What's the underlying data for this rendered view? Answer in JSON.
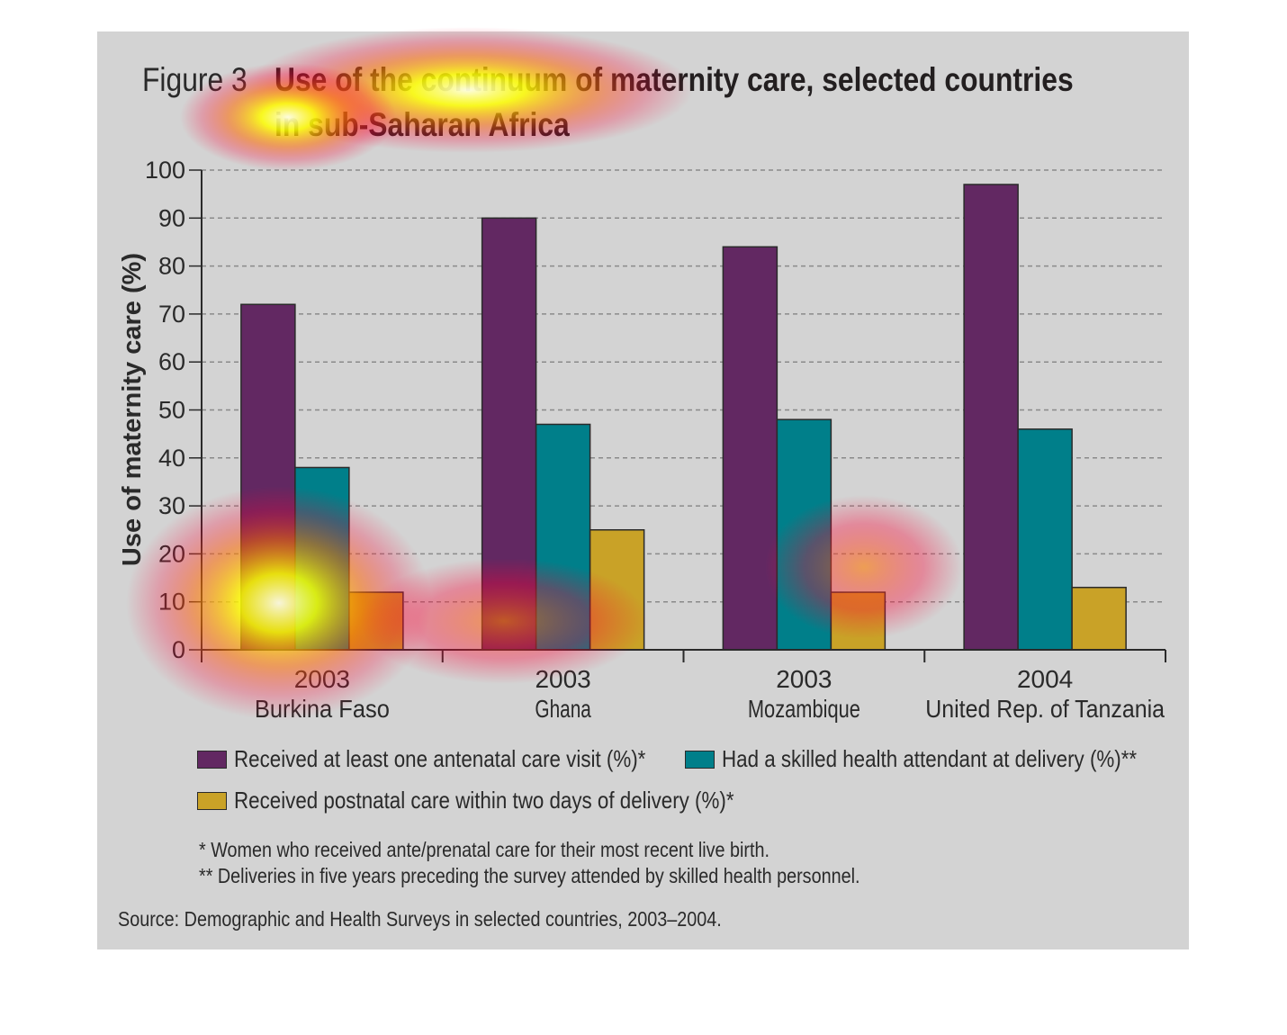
{
  "figure_label": "Figure 3",
  "title_line1": "Use of the continuum of maternity care, selected countries",
  "title_line2": "in sub-Saharan Africa",
  "colors": {
    "panel": "#d3d3d3",
    "antenatal": "#622862",
    "skilled": "#007f8a",
    "postnatal": "#c9a227",
    "text": "#2a2a2a"
  },
  "chart_data": {
    "type": "bar",
    "ylabel": "Use of maternity care (%)",
    "ylim": [
      0,
      100
    ],
    "yticks": [
      0,
      10,
      20,
      30,
      40,
      50,
      60,
      70,
      80,
      90,
      100
    ],
    "grid": true,
    "categories": [
      {
        "year": "2003",
        "country": "Burkina Faso"
      },
      {
        "year": "2003",
        "country": "Ghana"
      },
      {
        "year": "2003",
        "country": "Mozambique"
      },
      {
        "year": "2004",
        "country": "United Rep. of Tanzania"
      }
    ],
    "series": [
      {
        "name": "Received at least one antenatal care visit (%)*",
        "color": "#622862",
        "values": [
          72,
          90,
          84,
          97
        ]
      },
      {
        "name": "Had a skilled health attendant at delivery (%)**",
        "color": "#007f8a",
        "values": [
          38,
          47,
          48,
          46
        ]
      },
      {
        "name": "Received postnatal care within two days of delivery (%)*",
        "color": "#c9a227",
        "values": [
          12,
          25,
          12,
          13
        ]
      }
    ],
    "legend_position": "bottom"
  },
  "notes": [
    "* Women who received ante/prenatal care for their most recent live birth.",
    "** Deliveries in five years preceding the survey attended by skilled health personnel."
  ],
  "source": "Source: Demographic and Health Surveys in selected countries, 2003–2004."
}
